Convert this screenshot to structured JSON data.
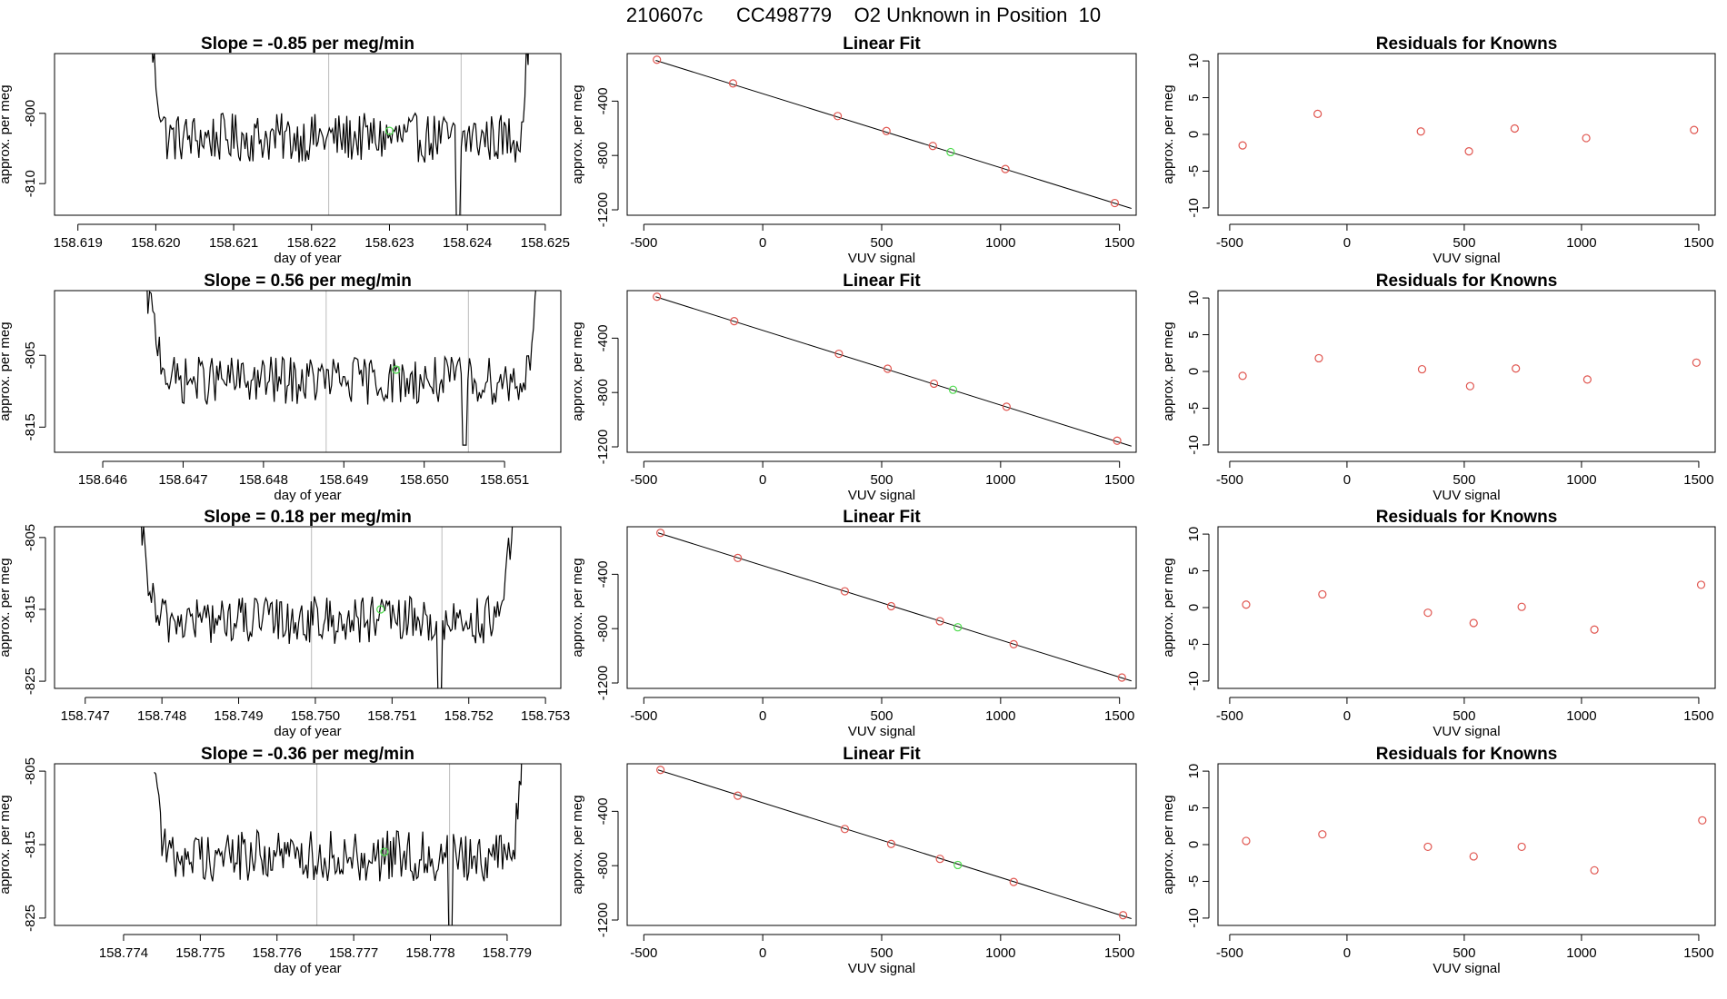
{
  "figure": {
    "title": "210607c      CC498779    O2 Unknown in Position  10",
    "colors": {
      "trace": "#000000",
      "known_point": "#e0554f",
      "unknown_point": "#4ddc4d",
      "guide_line": "#bbbbbb",
      "fit_line": "#000000"
    }
  },
  "chart_data": [
    {
      "type": "line",
      "row": 1,
      "column": "time_series",
      "title": "Slope =  -0.85  per meg/min",
      "xlabel": "day of year",
      "ylabel": "approx. per meg",
      "xlim": [
        158.6187,
        158.6252
      ],
      "ylim": [
        -814.5,
        -791.5
      ],
      "xticks": [
        158.619,
        158.62,
        158.621,
        158.622,
        158.623,
        158.624,
        158.625
      ],
      "xtick_labels": [
        "158.619",
        "158.620",
        "158.621",
        "158.622",
        "158.623",
        "158.624",
        "158.625"
      ],
      "yticks": [
        -800,
        -810
      ],
      "ytick_labels": [
        "-800",
        "-810"
      ],
      "vlines": [
        158.62222,
        158.62392
      ],
      "x_range": [
        158.6199,
        158.6248
      ],
      "level": -803.5,
      "spread": 2.2,
      "start_value": -786,
      "end_value": -786,
      "ramp_in": 158.62015,
      "ramp_out": 158.62465,
      "dip_x": 158.62388,
      "dip_value": -816,
      "unknown_point": {
        "x": 158.623,
        "y": -802.5
      }
    },
    {
      "type": "scatter",
      "row": 1,
      "column": "linear_fit",
      "title": "Linear Fit",
      "xlabel": "VUV signal",
      "ylabel": "approx. per meg",
      "xlim": [
        -570,
        1570
      ],
      "ylim": [
        -1240,
        -50
      ],
      "xticks": [
        -500,
        0,
        500,
        1000,
        1500
      ],
      "xtick_labels": [
        "-500",
        "0",
        "500",
        "1000",
        "1500"
      ],
      "yticks": [
        -400,
        -800,
        -1200
      ],
      "ytick_labels": [
        "-400",
        "-800",
        "-1200"
      ],
      "fit_line": {
        "x": [
          -450,
          1550
        ],
        "y": [
          -100,
          -1190
        ]
      },
      "known_points": [
        {
          "x": -445,
          "y": -95
        },
        {
          "x": -125,
          "y": -270
        },
        {
          "x": 315,
          "y": -510
        },
        {
          "x": 520,
          "y": -620
        },
        {
          "x": 715,
          "y": -730
        },
        {
          "x": 1020,
          "y": -900
        },
        {
          "x": 1480,
          "y": -1150
        }
      ],
      "unknown_point": {
        "x": 790,
        "y": -775
      }
    },
    {
      "type": "scatter",
      "row": 1,
      "column": "residuals",
      "title": "Residuals for Knowns",
      "xlabel": "VUV signal",
      "ylabel": "approx. per meg",
      "xlim": [
        -550,
        1570
      ],
      "ylim": [
        -11,
        11
      ],
      "xticks": [
        -500,
        0,
        500,
        1000,
        1500
      ],
      "xtick_labels": [
        "-500",
        "0",
        "500",
        "1000",
        "1500"
      ],
      "yticks": [
        10,
        5,
        0,
        -5,
        -10
      ],
      "ytick_labels": [
        "10",
        "5",
        "0",
        "-5",
        "-10"
      ],
      "points": [
        {
          "x": -445,
          "y": -1.5
        },
        {
          "x": -125,
          "y": 2.8
        },
        {
          "x": 315,
          "y": 0.4
        },
        {
          "x": 520,
          "y": -2.3
        },
        {
          "x": 715,
          "y": 0.8
        },
        {
          "x": 1020,
          "y": -0.5
        },
        {
          "x": 1480,
          "y": 0.6
        }
      ]
    },
    {
      "type": "line",
      "row": 2,
      "column": "time_series",
      "title": "Slope =  0.56  per meg/min",
      "xlabel": "day of year",
      "ylabel": "approx. per meg",
      "xlim": [
        158.6454,
        158.6517
      ],
      "ylim": [
        -818.5,
        -796
      ],
      "xticks": [
        158.646,
        158.647,
        158.648,
        158.649,
        158.65,
        158.651
      ],
      "xtick_labels": [
        "158.646",
        "158.647",
        "158.648",
        "158.649",
        "158.650",
        "158.651"
      ],
      "yticks": [
        -805,
        -815
      ],
      "ytick_labels": [
        "-805",
        "-815"
      ],
      "vlines": [
        158.64878,
        158.65055
      ],
      "x_range": [
        158.6465,
        158.6514
      ],
      "level": -808.5,
      "spread": 2.1,
      "start_value": -793,
      "end_value": -793,
      "ramp_in": 158.64685,
      "ramp_out": 158.65125,
      "dip_x": 158.6505,
      "dip_value": -817.5,
      "unknown_point": {
        "x": 158.64965,
        "y": -807
      }
    },
    {
      "type": "scatter",
      "row": 2,
      "column": "linear_fit",
      "title": "Linear Fit",
      "xlabel": "VUV signal",
      "ylabel": "approx. per meg",
      "xlim": [
        -570,
        1570
      ],
      "ylim": [
        -1240,
        -50
      ],
      "xticks": [
        -500,
        0,
        500,
        1000,
        1500
      ],
      "xtick_labels": [
        "-500",
        "0",
        "500",
        "1000",
        "1500"
      ],
      "yticks": [
        -400,
        -800,
        -1200
      ],
      "ytick_labels": [
        "-400",
        "-800",
        "-1200"
      ],
      "fit_line": {
        "x": [
          -450,
          1550
        ],
        "y": [
          -95,
          -1195
        ]
      },
      "known_points": [
        {
          "x": -445,
          "y": -95
        },
        {
          "x": -120,
          "y": -275
        },
        {
          "x": 320,
          "y": -515
        },
        {
          "x": 525,
          "y": -625
        },
        {
          "x": 720,
          "y": -735
        },
        {
          "x": 1025,
          "y": -905
        },
        {
          "x": 1490,
          "y": -1155
        }
      ],
      "unknown_point": {
        "x": 800,
        "y": -780
      }
    },
    {
      "type": "scatter",
      "row": 2,
      "column": "residuals",
      "title": "Residuals for Knowns",
      "xlabel": "VUV signal",
      "ylabel": "approx. per meg",
      "xlim": [
        -550,
        1570
      ],
      "ylim": [
        -11,
        11
      ],
      "xticks": [
        -500,
        0,
        500,
        1000,
        1500
      ],
      "xtick_labels": [
        "-500",
        "0",
        "500",
        "1000",
        "1500"
      ],
      "yticks": [
        10,
        5,
        0,
        -5,
        -10
      ],
      "ytick_labels": [
        "10",
        "5",
        "0",
        "-5",
        "-10"
      ],
      "points": [
        {
          "x": -445,
          "y": -0.6
        },
        {
          "x": -120,
          "y": 1.8
        },
        {
          "x": 320,
          "y": 0.3
        },
        {
          "x": 525,
          "y": -2.0
        },
        {
          "x": 720,
          "y": 0.4
        },
        {
          "x": 1025,
          "y": -1.1
        },
        {
          "x": 1490,
          "y": 1.2
        }
      ]
    },
    {
      "type": "line",
      "row": 3,
      "column": "time_series",
      "title": "Slope =  0.18  per meg/min",
      "xlabel": "day of year",
      "ylabel": "approx. per meg",
      "xlim": [
        158.7466,
        158.7532
      ],
      "ylim": [
        -826,
        -803.5
      ],
      "xticks": [
        158.747,
        158.748,
        158.749,
        158.75,
        158.751,
        158.752,
        158.753
      ],
      "xtick_labels": [
        "158.747",
        "158.748",
        "158.749",
        "158.750",
        "158.751",
        "158.752",
        "158.753"
      ],
      "yticks": [
        -805,
        -815,
        -825
      ],
      "ytick_labels": [
        "-805",
        "-815",
        "-825"
      ],
      "vlines": [
        158.74995,
        158.75165
      ],
      "x_range": [
        158.7477,
        158.7526
      ],
      "level": -816.5,
      "spread": 2.1,
      "start_value": -801,
      "end_value": -801,
      "ramp_in": 158.74795,
      "ramp_out": 158.75235,
      "dip_x": 158.75162,
      "dip_value": -827,
      "unknown_point": {
        "x": 158.75085,
        "y": -815
      }
    },
    {
      "type": "scatter",
      "row": 3,
      "column": "linear_fit",
      "title": "Linear Fit",
      "xlabel": "VUV signal",
      "ylabel": "approx. per meg",
      "xlim": [
        -570,
        1570
      ],
      "ylim": [
        -1240,
        -50
      ],
      "xticks": [
        -500,
        0,
        500,
        1000,
        1500
      ],
      "xtick_labels": [
        "-500",
        "0",
        "500",
        "1000",
        "1500"
      ],
      "yticks": [
        -400,
        -800,
        -1200
      ],
      "ytick_labels": [
        "-400",
        "-800",
        "-1200"
      ],
      "fit_line": {
        "x": [
          -440,
          1550
        ],
        "y": [
          -95,
          -1185
        ]
      },
      "known_points": [
        {
          "x": -430,
          "y": -95
        },
        {
          "x": -105,
          "y": -280
        },
        {
          "x": 345,
          "y": -525
        },
        {
          "x": 540,
          "y": -635
        },
        {
          "x": 745,
          "y": -745
        },
        {
          "x": 1055,
          "y": -915
        },
        {
          "x": 1510,
          "y": -1160
        }
      ],
      "unknown_point": {
        "x": 820,
        "y": -790
      }
    },
    {
      "type": "scatter",
      "row": 3,
      "column": "residuals",
      "title": "Residuals for Knowns",
      "xlabel": "VUV signal",
      "ylabel": "approx. per meg",
      "xlim": [
        -550,
        1570
      ],
      "ylim": [
        -11,
        11
      ],
      "xticks": [
        -500,
        0,
        500,
        1000,
        1500
      ],
      "xtick_labels": [
        "-500",
        "0",
        "500",
        "1000",
        "1500"
      ],
      "yticks": [
        10,
        5,
        0,
        -5,
        -10
      ],
      "ytick_labels": [
        "10",
        "5",
        "0",
        "-5",
        "-10"
      ],
      "points": [
        {
          "x": -430,
          "y": 0.4
        },
        {
          "x": -105,
          "y": 1.8
        },
        {
          "x": 345,
          "y": -0.7
        },
        {
          "x": 540,
          "y": -2.1
        },
        {
          "x": 745,
          "y": 0.1
        },
        {
          "x": 1055,
          "y": -3.0
        },
        {
          "x": 1510,
          "y": 3.1
        }
      ]
    },
    {
      "type": "line",
      "row": 4,
      "column": "time_series",
      "title": "Slope =  -0.36  per meg/min",
      "xlabel": "day of year",
      "ylabel": "approx. per meg",
      "xlim": [
        158.7731,
        158.7797
      ],
      "ylim": [
        -826,
        -804
      ],
      "xticks": [
        158.774,
        158.775,
        158.776,
        158.777,
        158.778,
        158.779
      ],
      "xtick_labels": [
        "158.774",
        "158.775",
        "158.776",
        "158.777",
        "158.778",
        "158.779"
      ],
      "yticks": [
        -805,
        -815,
        -825
      ],
      "ytick_labels": [
        "-805",
        "-815",
        "-825"
      ],
      "vlines": [
        158.77652,
        158.77825
      ],
      "x_range": [
        158.7744,
        158.7792
      ],
      "level": -816.5,
      "spread": 2.2,
      "start_value": -802,
      "end_value": -802,
      "ramp_in": 158.77455,
      "ramp_out": 158.77905,
      "dip_x": 158.77825,
      "dip_value": -827,
      "unknown_point": {
        "x": 158.7774,
        "y": -816
      }
    },
    {
      "type": "scatter",
      "row": 4,
      "column": "linear_fit",
      "title": "Linear Fit",
      "xlabel": "VUV signal",
      "ylabel": "approx. per meg",
      "xlim": [
        -570,
        1570
      ],
      "ylim": [
        -1240,
        -50
      ],
      "xticks": [
        -500,
        0,
        500,
        1000,
        1500
      ],
      "xtick_labels": [
        "-500",
        "0",
        "500",
        "1000",
        "1500"
      ],
      "yticks": [
        -400,
        -800,
        -1200
      ],
      "ytick_labels": [
        "-400",
        "-800",
        "-1200"
      ],
      "fit_line": {
        "x": [
          -440,
          1550
        ],
        "y": [
          -95,
          -1190
        ]
      },
      "known_points": [
        {
          "x": -430,
          "y": -95
        },
        {
          "x": -105,
          "y": -285
        },
        {
          "x": 345,
          "y": -530
        },
        {
          "x": 540,
          "y": -640
        },
        {
          "x": 745,
          "y": -750
        },
        {
          "x": 1055,
          "y": -920
        },
        {
          "x": 1515,
          "y": -1165
        }
      ],
      "unknown_point": {
        "x": 820,
        "y": -795
      }
    },
    {
      "type": "scatter",
      "row": 4,
      "column": "residuals",
      "title": "Residuals for Knowns",
      "xlabel": "VUV signal",
      "ylabel": "approx. per meg",
      "xlim": [
        -550,
        1570
      ],
      "ylim": [
        -11,
        11
      ],
      "xticks": [
        -500,
        0,
        500,
        1000,
        1500
      ],
      "xtick_labels": [
        "-500",
        "0",
        "500",
        "1000",
        "1500"
      ],
      "yticks": [
        10,
        5,
        0,
        -5,
        -10
      ],
      "ytick_labels": [
        "10",
        "5",
        "0",
        "-5",
        "-10"
      ],
      "points": [
        {
          "x": -430,
          "y": 0.5
        },
        {
          "x": -105,
          "y": 1.4
        },
        {
          "x": 345,
          "y": -0.3
        },
        {
          "x": 540,
          "y": -1.6
        },
        {
          "x": 745,
          "y": -0.3
        },
        {
          "x": 1055,
          "y": -3.5
        },
        {
          "x": 1515,
          "y": 3.3
        }
      ]
    }
  ]
}
